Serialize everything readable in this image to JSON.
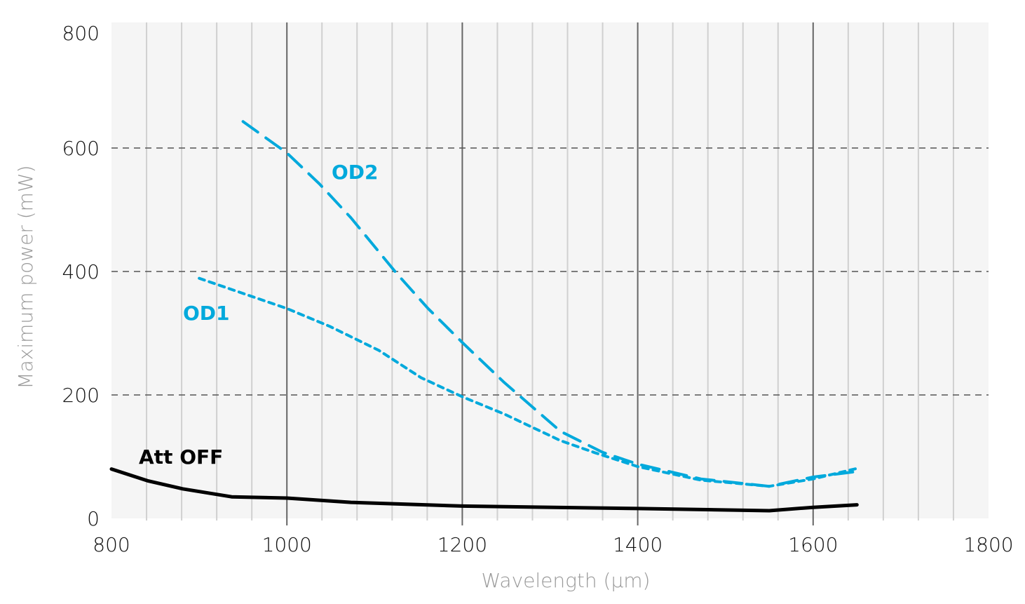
{
  "chart_data": {
    "type": "line",
    "title": "",
    "xlabel": "Wavelength (µm)",
    "ylabel": "Maximum power (mW)",
    "xlim": [
      800,
      1800
    ],
    "ylim": [
      0,
      800
    ],
    "xticks": [
      800,
      1000,
      1200,
      1400,
      1600,
      1800
    ],
    "yticks": [
      0,
      200,
      400,
      600,
      800
    ],
    "grid": {
      "x_major_every": 200,
      "x_minor_every": 40,
      "y_dashed": [
        200,
        400,
        600
      ]
    },
    "legend": "inline labels",
    "background": "#f5f5f5",
    "series": [
      {
        "name": "OD2",
        "color": "#00a9dc",
        "style": "long-dash",
        "x": [
          950,
          1000,
          1037,
          1073,
          1125,
          1161,
          1200,
          1248,
          1312,
          1360,
          1400,
          1472,
          1550,
          1600,
          1650
        ],
        "y": [
          643,
          592,
          542,
          487,
          397,
          340,
          285,
          220,
          141,
          107,
          88,
          64,
          52,
          67,
          76
        ]
      },
      {
        "name": "OD1",
        "color": "#00a9dc",
        "style": "short-dash",
        "x": [
          900,
          1000,
          1049,
          1105,
          1153,
          1200,
          1248,
          1312,
          1352,
          1400,
          1472,
          1550,
          1600,
          1650
        ],
        "y": [
          389,
          340,
          311,
          272,
          228,
          197,
          169,
          126,
          106,
          84,
          62,
          52,
          64,
          81
        ]
      },
      {
        "name": "Att OFF",
        "color": "#000000",
        "style": "solid",
        "x": [
          800,
          841,
          881,
          937,
          1000,
          1073,
          1200,
          1400,
          1550,
          1600,
          1650
        ],
        "y": [
          80,
          61,
          48,
          35,
          33,
          26,
          20,
          16,
          12.5,
          18,
          22
        ]
      }
    ]
  }
}
